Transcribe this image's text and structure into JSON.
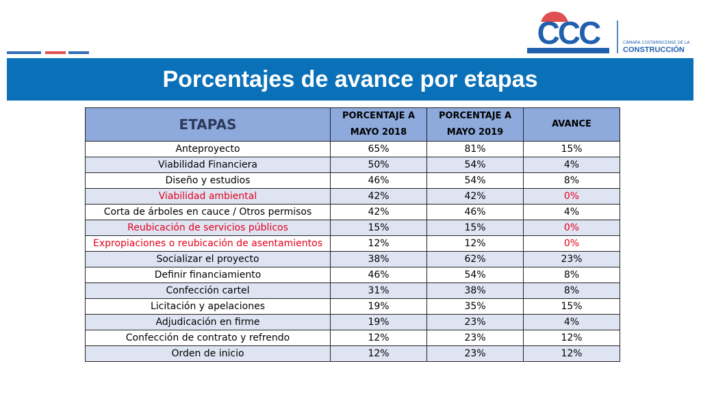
{
  "header": {
    "title": "Porcentajes de avance por etapas",
    "logo": {
      "mark": "CCC",
      "line1": "CÁMARA COSTARRICENSE DE LA",
      "line2": "CONSTRUCCIÓN"
    }
  },
  "table": {
    "columns": [
      "ETAPAS",
      "PORCENTAJE A MAYO 2018",
      "PORCENTAJE A MAYO 2019",
      "AVANCE"
    ],
    "rows": [
      [
        "Anteproyecto",
        "65%",
        "81%",
        "15%"
      ],
      [
        "Viabilidad Financiera",
        "50%",
        "54%",
        "4%"
      ],
      [
        "Diseño y estudios",
        "46%",
        "54%",
        "8%"
      ],
      [
        "Viabilidad ambiental",
        "42%",
        "42%",
        "0%"
      ],
      [
        "Corta de árboles en cauce / Otros permisos",
        "42%",
        "46%",
        "4%"
      ],
      [
        "Reubicación de servicios públicos",
        "15%",
        "15%",
        "0%"
      ],
      [
        "Expropiaciones o reubicación de asentamientos",
        "12%",
        "12%",
        "0%"
      ],
      [
        "Socializar el proyecto",
        "38%",
        "62%",
        "23%"
      ],
      [
        "Definir financiamiento",
        "46%",
        "54%",
        "8%"
      ],
      [
        "Confección cartel",
        "31%",
        "38%",
        "8%"
      ],
      [
        "Licitación y apelaciones",
        "19%",
        "35%",
        "15%"
      ],
      [
        "Adjudicación en firme",
        "19%",
        "23%",
        "4%"
      ],
      [
        "Confección de contrato y refrendo",
        "12%",
        "23%",
        "12%"
      ],
      [
        "Orden de inicio",
        "12%",
        "23%",
        "12%"
      ]
    ],
    "highlighted_rows": [
      3,
      5,
      6
    ],
    "highlight_color": "#e3001b"
  }
}
